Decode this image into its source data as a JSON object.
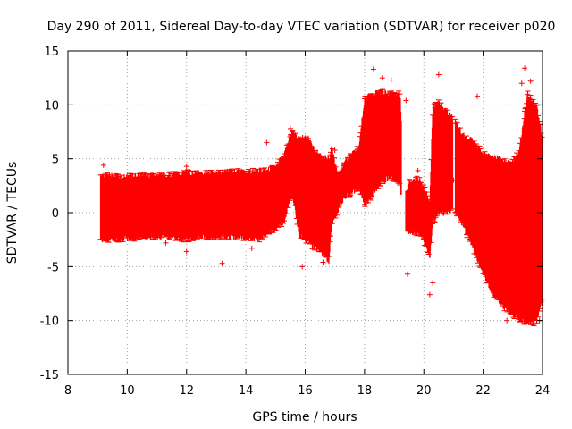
{
  "chart_data": {
    "type": "scatter",
    "title": "Day 290 of 2011, Sidereal Day-to-day VTEC variation (SDTVAR) for receiver p020",
    "xlabel": "GPS time / hours",
    "ylabel": "SDTVAR / TECUs",
    "xlim": [
      8,
      24
    ],
    "ylim": [
      -15,
      15
    ],
    "x_ticks": [
      8,
      10,
      12,
      14,
      16,
      18,
      20,
      22,
      24
    ],
    "x_tick_labels": [
      "8",
      "10",
      "12",
      "14",
      "16",
      "18",
      "20",
      "22",
      "24"
    ],
    "y_ticks": [
      -15,
      -10,
      -5,
      0,
      5,
      10,
      15
    ],
    "y_tick_labels": [
      "-15",
      "-10",
      "-5",
      "0",
      "5",
      "10",
      "15"
    ],
    "grid": true,
    "marker": "+",
    "series": [
      {
        "name": "SDTVAR",
        "color": "#ff0000",
        "envelope": {
          "x": [
            9.1,
            9.5,
            10.0,
            10.5,
            11.0,
            11.5,
            12.0,
            12.5,
            13.0,
            13.5,
            14.0,
            14.5,
            14.7,
            15.0,
            15.3,
            15.5,
            15.6,
            15.8,
            16.0,
            16.2,
            16.5,
            16.8,
            16.9,
            17.1,
            17.3,
            17.5,
            17.8,
            18.0,
            18.3,
            18.6,
            18.9,
            19.2,
            19.35,
            19.5,
            19.8,
            20.0,
            20.2,
            20.3,
            20.5,
            20.8,
            21.0,
            21.3,
            21.6,
            22.0,
            22.3,
            22.6,
            22.9,
            23.2,
            23.5,
            23.8,
            24.0
          ],
          "upper": [
            3.5,
            3.4,
            3.3,
            3.5,
            3.5,
            3.5,
            3.7,
            3.6,
            3.7,
            3.8,
            3.8,
            3.9,
            3.9,
            4.2,
            5.5,
            7.2,
            7.6,
            6.8,
            7.0,
            6.4,
            5.2,
            5.0,
            6.0,
            3.5,
            4.6,
            5.3,
            6.0,
            10.5,
            11.0,
            11.2,
            11.0,
            11.0,
            1.5,
            2.8,
            3.2,
            2.4,
            0.8,
            9.8,
            10.2,
            9.3,
            8.8,
            7.2,
            6.8,
            5.5,
            5.2,
            5.0,
            4.5,
            5.5,
            11.0,
            9.8,
            7.0
          ],
          "lower": [
            -2.5,
            -2.5,
            -2.4,
            -2.3,
            -2.2,
            -2.2,
            -2.5,
            -2.2,
            -2.3,
            -2.2,
            -2.3,
            -2.5,
            -1.8,
            -1.5,
            -0.8,
            1.5,
            1.2,
            -2.0,
            -2.5,
            -3.0,
            -3.5,
            -4.5,
            -1.0,
            0.2,
            1.4,
            1.8,
            2.3,
            0.8,
            1.8,
            2.8,
            3.5,
            2.4,
            -1.5,
            -1.8,
            -1.9,
            -2.6,
            -4.2,
            -1.0,
            0.0,
            0.0,
            0.5,
            -1.0,
            -3.0,
            -5.5,
            -7.5,
            -8.5,
            -9.3,
            -9.8,
            -10.2,
            -10.2,
            -8.0
          ]
        },
        "outliers": [
          {
            "x": 9.2,
            "y": 4.4
          },
          {
            "x": 11.3,
            "y": -2.8
          },
          {
            "x": 12.0,
            "y": -3.6
          },
          {
            "x": 12.0,
            "y": 4.3
          },
          {
            "x": 13.2,
            "y": -4.7
          },
          {
            "x": 14.7,
            "y": 6.5
          },
          {
            "x": 14.2,
            "y": -3.3
          },
          {
            "x": 15.9,
            "y": -5.0
          },
          {
            "x": 16.6,
            "y": -4.6
          },
          {
            "x": 18.3,
            "y": 13.3
          },
          {
            "x": 18.6,
            "y": 12.5
          },
          {
            "x": 18.9,
            "y": 12.3
          },
          {
            "x": 19.4,
            "y": 10.4
          },
          {
            "x": 19.45,
            "y": -5.7
          },
          {
            "x": 20.2,
            "y": -7.6
          },
          {
            "x": 20.3,
            "y": -6.5
          },
          {
            "x": 20.5,
            "y": 12.8
          },
          {
            "x": 21.8,
            "y": 10.8
          },
          {
            "x": 23.4,
            "y": 13.4
          },
          {
            "x": 23.3,
            "y": 12.0
          },
          {
            "x": 23.9,
            "y": -10.0
          },
          {
            "x": 20.1,
            "y": -3.0
          },
          {
            "x": 19.8,
            "y": 3.9
          },
          {
            "x": 17.0,
            "y": 5.8
          },
          {
            "x": 15.5,
            "y": 7.8
          },
          {
            "x": 22.8,
            "y": -10.0
          },
          {
            "x": 23.6,
            "y": 12.2
          },
          {
            "x": 21.0,
            "y": 3.0
          },
          {
            "x": 16.1,
            "y": 6.9
          },
          {
            "x": 10.4,
            "y": 3.6
          }
        ]
      }
    ]
  }
}
